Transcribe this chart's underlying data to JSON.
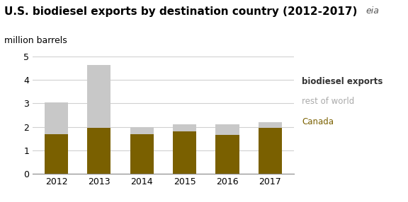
{
  "title": "U.S. biodiesel exports by destination country (2012-2017)",
  "ylabel": "million barrels",
  "years": [
    2012,
    2013,
    2014,
    2015,
    2016,
    2017
  ],
  "canada": [
    1.7,
    1.95,
    1.7,
    1.8,
    1.65,
    1.95
  ],
  "rest_of_world": [
    1.35,
    2.7,
    0.3,
    0.3,
    0.45,
    0.25
  ],
  "canada_color": "#7a6000",
  "rest_of_world_color": "#c8c8c8",
  "ylim": [
    0,
    5
  ],
  "yticks": [
    0,
    1,
    2,
    3,
    4,
    5
  ],
  "bar_width": 0.55,
  "legend_labels": [
    "biodiesel exports",
    "rest of world",
    "Canada"
  ],
  "background_color": "#ffffff",
  "title_fontsize": 11,
  "label_fontsize": 9,
  "tick_fontsize": 9
}
